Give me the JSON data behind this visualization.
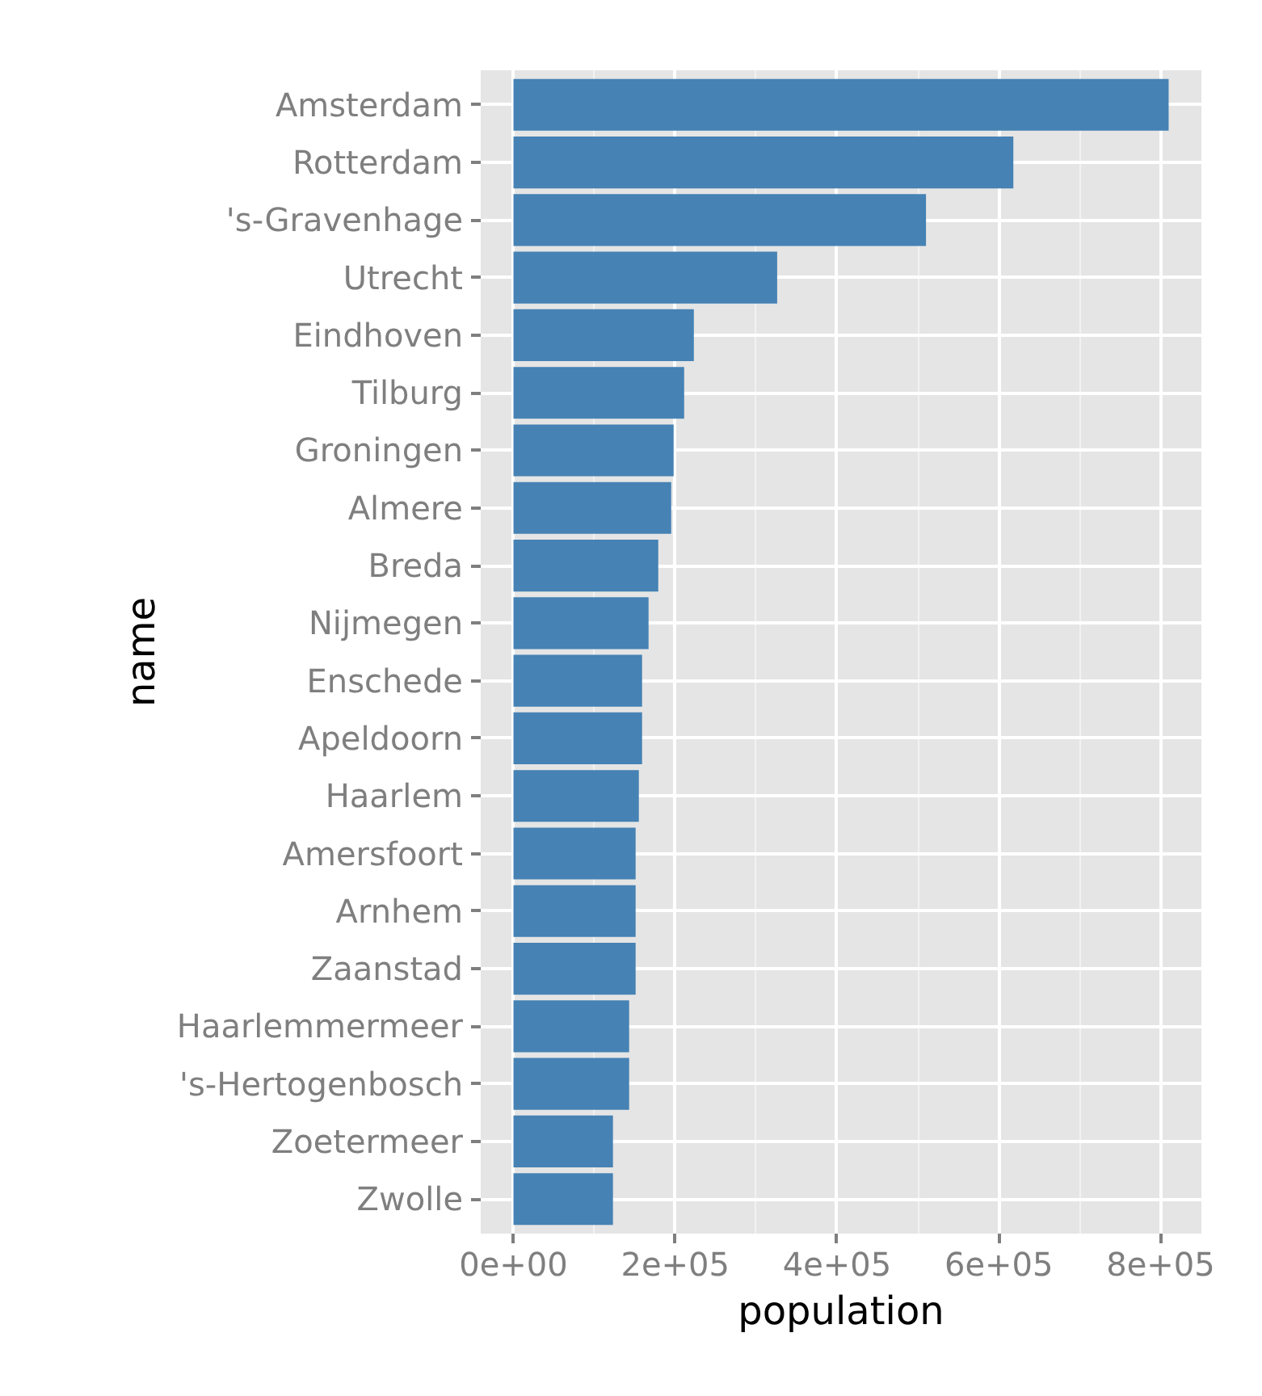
{
  "chart_data": {
    "type": "bar",
    "orientation": "horizontal",
    "xlabel": "population",
    "ylabel": "name",
    "categories": [
      "Amsterdam",
      "Rotterdam",
      "'s-Gravenhage",
      "Utrecht",
      "Eindhoven",
      "Tilburg",
      "Groningen",
      "Almere",
      "Breda",
      "Nijmegen",
      "Enschede",
      "Apeldoorn",
      "Haarlem",
      "Amersfoort",
      "Arnhem",
      "Zaanstad",
      "Haarlemmermeer",
      "'s-Hertogenbosch",
      "Zoetermeer",
      "Zwolle"
    ],
    "values": [
      810000,
      618000,
      510000,
      326000,
      223000,
      211000,
      198000,
      195000,
      179000,
      167000,
      159000,
      159000,
      155000,
      151000,
      151000,
      151000,
      143000,
      143000,
      123000,
      123000
    ],
    "color": "#4682b4",
    "xlim": [
      -40500,
      850500
    ],
    "xticks": [
      {
        "value": 0,
        "label": "0e+00"
      },
      {
        "value": 200000,
        "label": "2e+05"
      },
      {
        "value": 400000,
        "label": "4e+05"
      },
      {
        "value": 600000,
        "label": "6e+05"
      },
      {
        "value": 800000,
        "label": "8e+05"
      }
    ],
    "grid": true
  }
}
